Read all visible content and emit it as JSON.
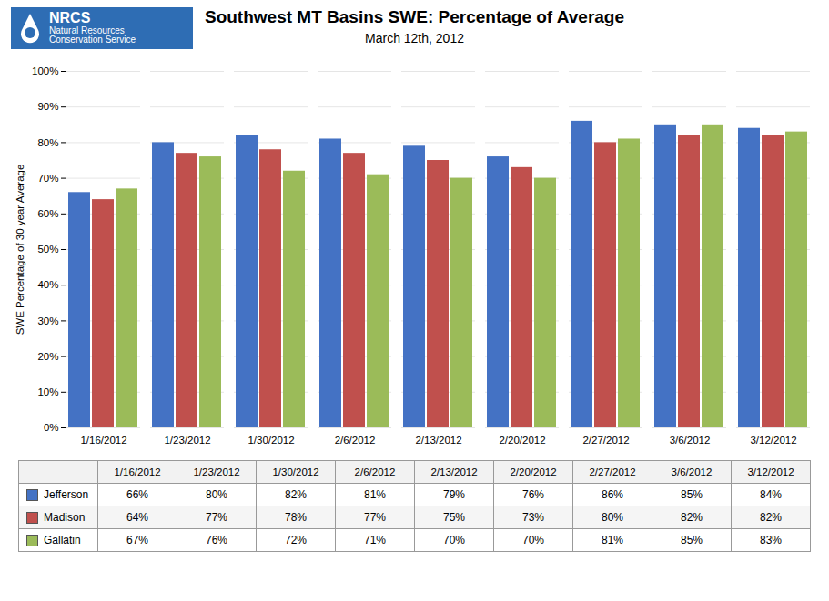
{
  "chart_data": {
    "type": "bar",
    "title": "Southwest MT Basins SWE: Percentage of Average",
    "subtitle": "March 12th, 2012",
    "ylabel": "SWE Percentage of 30 year Average",
    "annotations": [
      "NRCS",
      "Natural Resources",
      "Conservation Service"
    ],
    "categories": [
      "1/16/2012",
      "1/23/2012",
      "1/30/2012",
      "2/6/2012",
      "2/13/2012",
      "2/20/2012",
      "2/27/2012",
      "3/6/2012",
      "3/12/2012"
    ],
    "series": [
      {
        "name": "Jefferson",
        "color": "#4472C4",
        "values": [
          66,
          80,
          82,
          81,
          79,
          76,
          86,
          85,
          84
        ],
        "value_labels": [
          "66%",
          "80%",
          "82%",
          "81%",
          "79%",
          "76%",
          "86%",
          "85%",
          "84%"
        ]
      },
      {
        "name": "Madison",
        "color": "#C0504D",
        "values": [
          64,
          77,
          78,
          77,
          75,
          73,
          80,
          82,
          82
        ],
        "value_labels": [
          "64%",
          "77%",
          "78%",
          "77%",
          "75%",
          "73%",
          "80%",
          "82%",
          "82%"
        ]
      },
      {
        "name": "Gallatin",
        "color": "#9BBB59",
        "values": [
          67,
          76,
          72,
          71,
          70,
          70,
          81,
          85,
          83
        ],
        "value_labels": [
          "67%",
          "76%",
          "72%",
          "71%",
          "70%",
          "70%",
          "81%",
          "85%",
          "83%"
        ]
      }
    ],
    "ylim": [
      0,
      100
    ],
    "yticks": [
      {
        "value": 0,
        "label": "0%"
      },
      {
        "value": 10,
        "label": "10%"
      },
      {
        "value": 20,
        "label": "20%"
      },
      {
        "value": 30,
        "label": "30%"
      },
      {
        "value": 40,
        "label": "40%"
      },
      {
        "value": 50,
        "label": "50%"
      },
      {
        "value": 60,
        "label": "60%"
      },
      {
        "value": 70,
        "label": "70%"
      },
      {
        "value": 80,
        "label": "80%"
      },
      {
        "value": 90,
        "label": "90%"
      },
      {
        "value": 100,
        "label": "100%"
      }
    ],
    "grid": true,
    "legend": "bottom"
  }
}
